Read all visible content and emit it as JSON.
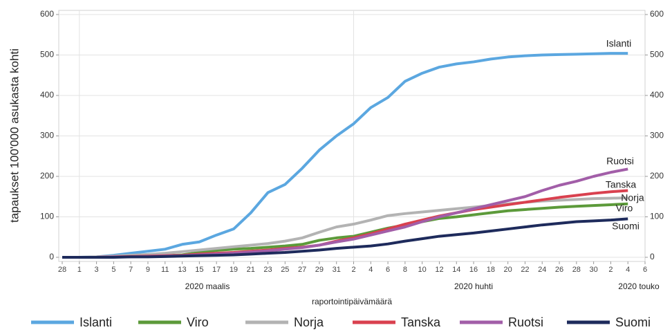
{
  "chart_data": {
    "type": "line",
    "y_label": "tapaukset 100'000 asukasta kohti",
    "x_label": "raportointipäivämäärä",
    "month_labels": [
      "2020 maalis",
      "2020 huhti",
      "2020 touko"
    ],
    "categories": [
      "28",
      "1",
      "3",
      "5",
      "7",
      "9",
      "11",
      "13",
      "15",
      "17",
      "19",
      "21",
      "23",
      "25",
      "27",
      "29",
      "31",
      "2",
      "4",
      "6",
      "8",
      "10",
      "12",
      "14",
      "16",
      "18",
      "20",
      "22",
      "24",
      "26",
      "28",
      "30",
      "2",
      "4",
      "6"
    ],
    "series": [
      {
        "name": "Islanti",
        "color": "#5ba7e0",
        "values": [
          0,
          0,
          1,
          5,
          10,
          15,
          20,
          32,
          38,
          55,
          70,
          110,
          160,
          180,
          220,
          265,
          300,
          330,
          370,
          395,
          435,
          455,
          470,
          478,
          483,
          490,
          495,
          498,
          500,
          501,
          502,
          503,
          504,
          504,
          null
        ]
      },
      {
        "name": "Viro",
        "color": "#5c9a3a",
        "values": [
          0,
          0,
          0,
          1,
          2,
          3,
          4,
          6,
          12,
          17,
          20,
          22,
          25,
          28,
          32,
          42,
          48,
          52,
          62,
          72,
          80,
          88,
          96,
          100,
          105,
          110,
          115,
          118,
          121,
          124,
          126,
          128,
          130,
          132,
          null
        ]
      },
      {
        "name": "Norja",
        "color": "#b3b3b3",
        "values": [
          0,
          0,
          1,
          3,
          5,
          7,
          10,
          14,
          18,
          22,
          26,
          30,
          34,
          40,
          48,
          62,
          75,
          82,
          92,
          103,
          108,
          112,
          116,
          120,
          124,
          128,
          132,
          136,
          139,
          141,
          143,
          145,
          146,
          147,
          null
        ]
      },
      {
        "name": "Tanska",
        "color": "#d9414f",
        "values": [
          0,
          0,
          0,
          1,
          2,
          3,
          4,
          5,
          8,
          10,
          12,
          15,
          18,
          22,
          25,
          30,
          40,
          48,
          58,
          70,
          82,
          92,
          102,
          110,
          118,
          124,
          130,
          136,
          142,
          148,
          153,
          158,
          162,
          165,
          null
        ]
      },
      {
        "name": "Ruotsi",
        "color": "#a25ea8",
        "values": [
          0,
          0,
          0,
          1,
          1,
          2,
          3,
          4,
          6,
          8,
          10,
          13,
          16,
          20,
          24,
          30,
          38,
          45,
          55,
          65,
          75,
          88,
          100,
          110,
          120,
          130,
          140,
          150,
          165,
          178,
          188,
          200,
          210,
          218,
          null
        ]
      },
      {
        "name": "Suomi",
        "color": "#1e2b5c",
        "values": [
          0,
          0,
          0,
          0,
          1,
          1,
          2,
          3,
          4,
          5,
          6,
          8,
          10,
          12,
          15,
          18,
          22,
          25,
          28,
          33,
          40,
          46,
          52,
          56,
          60,
          65,
          70,
          75,
          80,
          84,
          88,
          90,
          92,
          95,
          null
        ]
      }
    ],
    "ylim": [
      0,
      600
    ],
    "yticks": [
      0,
      100,
      200,
      300,
      400,
      500,
      600
    ],
    "grid": true
  }
}
